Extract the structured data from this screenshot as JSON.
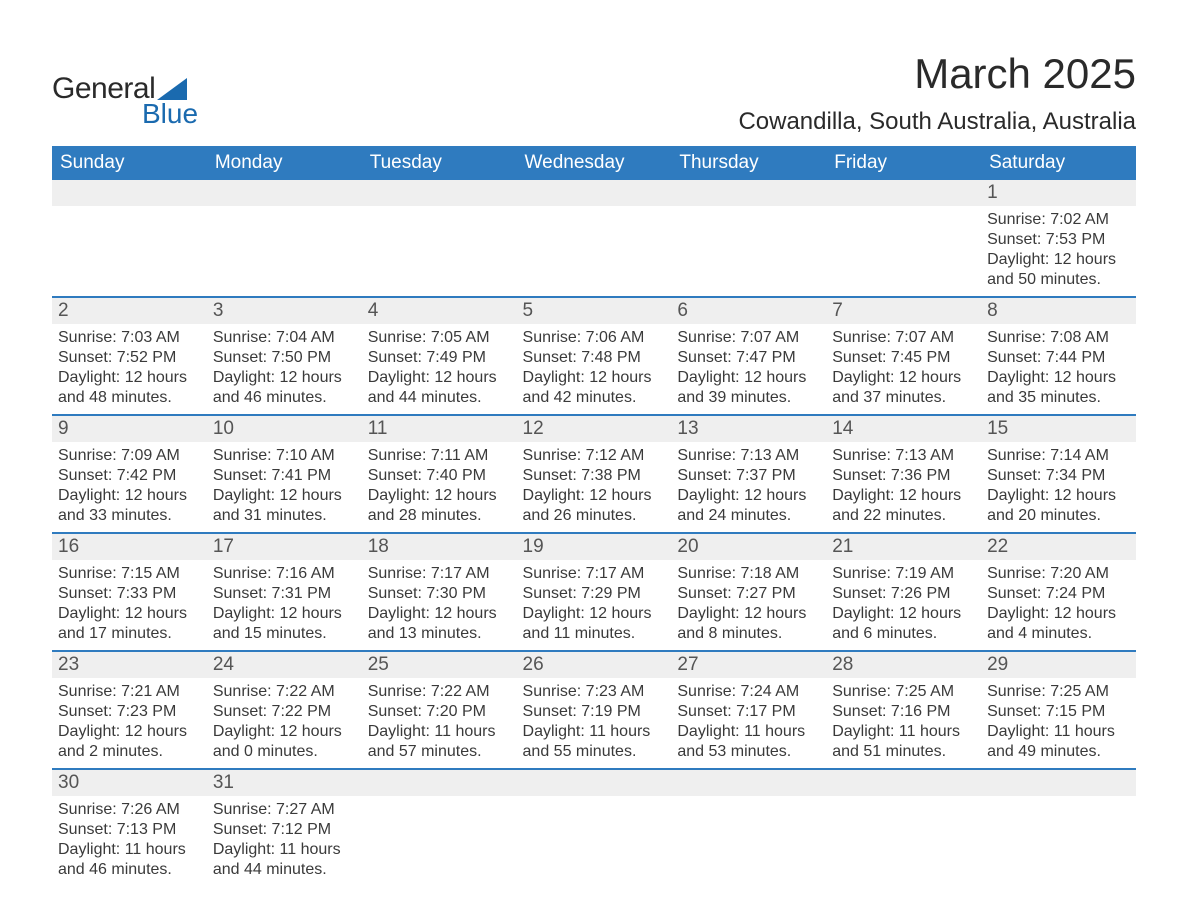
{
  "logo": {
    "text1": "General",
    "text2": "Blue",
    "shape_color": "#1a6aaf"
  },
  "title": "March 2025",
  "location": "Cowandilla, South Australia, Australia",
  "colors": {
    "header_bg": "#2f7bbf",
    "header_text": "#ffffff",
    "daynum_bg": "#efefef",
    "row_border": "#2f7bbf",
    "body_text": "#3a3a3a",
    "daynum_text": "#555555",
    "background": "#ffffff"
  },
  "fonts": {
    "title_size_pt": 32,
    "location_size_pt": 18,
    "header_size_pt": 14,
    "daynum_size_pt": 14,
    "detail_size_pt": 12
  },
  "weekdays": [
    "Sunday",
    "Monday",
    "Tuesday",
    "Wednesday",
    "Thursday",
    "Friday",
    "Saturday"
  ],
  "labels": {
    "sunrise": "Sunrise:",
    "sunset": "Sunset:",
    "daylight": "Daylight:"
  },
  "weeks": [
    [
      null,
      null,
      null,
      null,
      null,
      null,
      {
        "day": "1",
        "sunrise": "7:02 AM",
        "sunset": "7:53 PM",
        "daylight": "12 hours and 50 minutes."
      }
    ],
    [
      {
        "day": "2",
        "sunrise": "7:03 AM",
        "sunset": "7:52 PM",
        "daylight": "12 hours and 48 minutes."
      },
      {
        "day": "3",
        "sunrise": "7:04 AM",
        "sunset": "7:50 PM",
        "daylight": "12 hours and 46 minutes."
      },
      {
        "day": "4",
        "sunrise": "7:05 AM",
        "sunset": "7:49 PM",
        "daylight": "12 hours and 44 minutes."
      },
      {
        "day": "5",
        "sunrise": "7:06 AM",
        "sunset": "7:48 PM",
        "daylight": "12 hours and 42 minutes."
      },
      {
        "day": "6",
        "sunrise": "7:07 AM",
        "sunset": "7:47 PM",
        "daylight": "12 hours and 39 minutes."
      },
      {
        "day": "7",
        "sunrise": "7:07 AM",
        "sunset": "7:45 PM",
        "daylight": "12 hours and 37 minutes."
      },
      {
        "day": "8",
        "sunrise": "7:08 AM",
        "sunset": "7:44 PM",
        "daylight": "12 hours and 35 minutes."
      }
    ],
    [
      {
        "day": "9",
        "sunrise": "7:09 AM",
        "sunset": "7:42 PM",
        "daylight": "12 hours and 33 minutes."
      },
      {
        "day": "10",
        "sunrise": "7:10 AM",
        "sunset": "7:41 PM",
        "daylight": "12 hours and 31 minutes."
      },
      {
        "day": "11",
        "sunrise": "7:11 AM",
        "sunset": "7:40 PM",
        "daylight": "12 hours and 28 minutes."
      },
      {
        "day": "12",
        "sunrise": "7:12 AM",
        "sunset": "7:38 PM",
        "daylight": "12 hours and 26 minutes."
      },
      {
        "day": "13",
        "sunrise": "7:13 AM",
        "sunset": "7:37 PM",
        "daylight": "12 hours and 24 minutes."
      },
      {
        "day": "14",
        "sunrise": "7:13 AM",
        "sunset": "7:36 PM",
        "daylight": "12 hours and 22 minutes."
      },
      {
        "day": "15",
        "sunrise": "7:14 AM",
        "sunset": "7:34 PM",
        "daylight": "12 hours and 20 minutes."
      }
    ],
    [
      {
        "day": "16",
        "sunrise": "7:15 AM",
        "sunset": "7:33 PM",
        "daylight": "12 hours and 17 minutes."
      },
      {
        "day": "17",
        "sunrise": "7:16 AM",
        "sunset": "7:31 PM",
        "daylight": "12 hours and 15 minutes."
      },
      {
        "day": "18",
        "sunrise": "7:17 AM",
        "sunset": "7:30 PM",
        "daylight": "12 hours and 13 minutes."
      },
      {
        "day": "19",
        "sunrise": "7:17 AM",
        "sunset": "7:29 PM",
        "daylight": "12 hours and 11 minutes."
      },
      {
        "day": "20",
        "sunrise": "7:18 AM",
        "sunset": "7:27 PM",
        "daylight": "12 hours and 8 minutes."
      },
      {
        "day": "21",
        "sunrise": "7:19 AM",
        "sunset": "7:26 PM",
        "daylight": "12 hours and 6 minutes."
      },
      {
        "day": "22",
        "sunrise": "7:20 AM",
        "sunset": "7:24 PM",
        "daylight": "12 hours and 4 minutes."
      }
    ],
    [
      {
        "day": "23",
        "sunrise": "7:21 AM",
        "sunset": "7:23 PM",
        "daylight": "12 hours and 2 minutes."
      },
      {
        "day": "24",
        "sunrise": "7:22 AM",
        "sunset": "7:22 PM",
        "daylight": "12 hours and 0 minutes."
      },
      {
        "day": "25",
        "sunrise": "7:22 AM",
        "sunset": "7:20 PM",
        "daylight": "11 hours and 57 minutes."
      },
      {
        "day": "26",
        "sunrise": "7:23 AM",
        "sunset": "7:19 PM",
        "daylight": "11 hours and 55 minutes."
      },
      {
        "day": "27",
        "sunrise": "7:24 AM",
        "sunset": "7:17 PM",
        "daylight": "11 hours and 53 minutes."
      },
      {
        "day": "28",
        "sunrise": "7:25 AM",
        "sunset": "7:16 PM",
        "daylight": "11 hours and 51 minutes."
      },
      {
        "day": "29",
        "sunrise": "7:25 AM",
        "sunset": "7:15 PM",
        "daylight": "11 hours and 49 minutes."
      }
    ],
    [
      {
        "day": "30",
        "sunrise": "7:26 AM",
        "sunset": "7:13 PM",
        "daylight": "11 hours and 46 minutes."
      },
      {
        "day": "31",
        "sunrise": "7:27 AM",
        "sunset": "7:12 PM",
        "daylight": "11 hours and 44 minutes."
      },
      null,
      null,
      null,
      null,
      null
    ]
  ]
}
